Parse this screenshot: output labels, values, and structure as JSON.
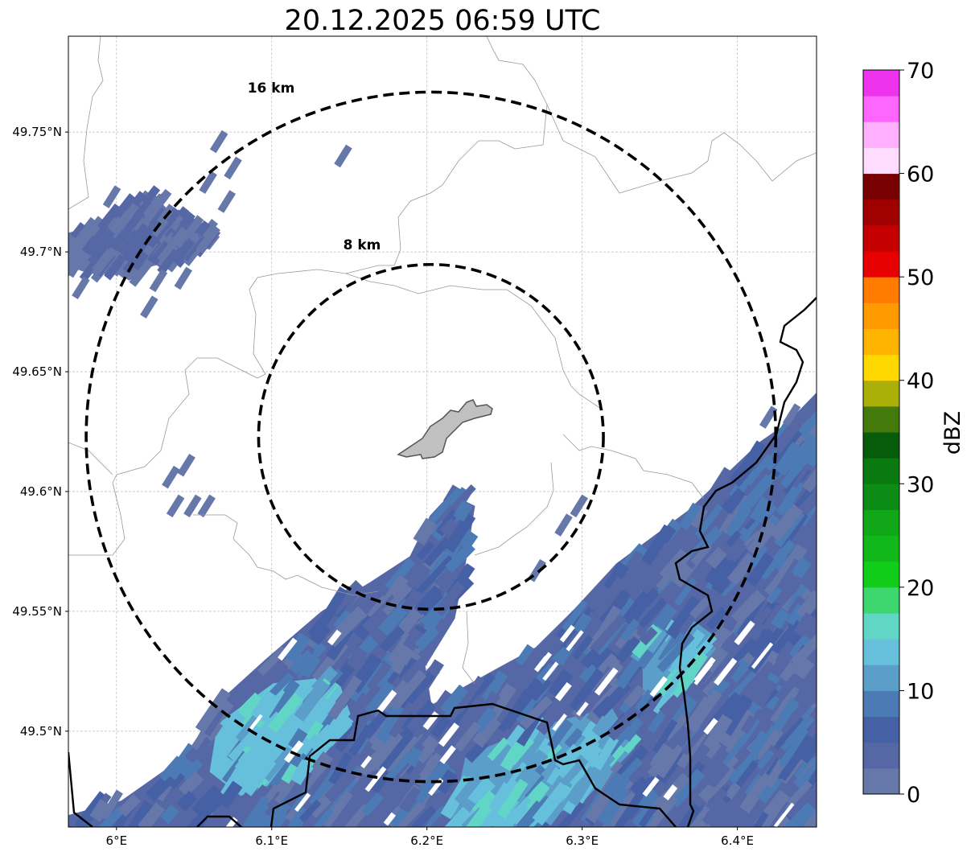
{
  "chart_data": {
    "type": "heatmap",
    "title": "20.12.2025 06:59 UTC",
    "projection": "PlateCarree",
    "extent": {
      "lon": [
        5.969,
        6.451
      ],
      "lat": [
        49.46,
        49.79
      ]
    },
    "xticks": [
      {
        "value": 6.0,
        "label": "6°E"
      },
      {
        "value": 6.1,
        "label": "6.1°E"
      },
      {
        "value": 6.2,
        "label": "6.2°E"
      },
      {
        "value": 6.3,
        "label": "6.3°E"
      },
      {
        "value": 6.4,
        "label": "6.4°E"
      }
    ],
    "yticks": [
      {
        "value": 49.75,
        "label": "49.75°N"
      },
      {
        "value": 49.7,
        "label": "49.7°N"
      },
      {
        "value": 49.65,
        "label": "49.65°N"
      },
      {
        "value": 49.6,
        "label": "49.6°N"
      },
      {
        "value": 49.55,
        "label": "49.55°N"
      },
      {
        "value": 49.5,
        "label": "49.5°N"
      }
    ],
    "grid": true,
    "range_rings": {
      "center": {
        "lon": 6.2026,
        "lat": 49.6228
      },
      "rings": [
        {
          "km": 8,
          "label": "8 km"
        },
        {
          "km": 16,
          "label": "16 km"
        }
      ]
    },
    "colorbar": {
      "label": "dBZ",
      "min": 0,
      "max": 70,
      "step": 2.5,
      "ticks": [
        0,
        10,
        20,
        30,
        40,
        50,
        60,
        70
      ],
      "tick_labels": [
        "0",
        "10",
        "20",
        "30",
        "40",
        "50",
        "60",
        "70"
      ],
      "colors": [
        "#6677aa",
        "#5567a4",
        "#4560a5",
        "#4b7ab4",
        "#5a9ec9",
        "#66c0dc",
        "#62d6c6",
        "#3ed66e",
        "#12cc1a",
        "#10b81a",
        "#10a818",
        "#0c8c14",
        "#0a7a10",
        "#075c0c",
        "#447a0c",
        "#aab008",
        "#ffd800",
        "#ffb400",
        "#ff9a00",
        "#ff7c00",
        "#e60000",
        "#c40000",
        "#a00000",
        "#780000",
        "#ffdcff",
        "#ffb0ff",
        "#ff66ff",
        "#ee33ee"
      ]
    },
    "echo_regions": [
      {
        "name": "main-band",
        "dbz": 2.5,
        "polygon": [
          [
            5.969,
            49.46
          ],
          [
            5.969,
            49.465
          ],
          [
            6.003,
            49.471
          ],
          [
            6.047,
            49.491
          ],
          [
            6.062,
            49.51
          ],
          [
            6.096,
            49.53
          ],
          [
            6.132,
            49.55
          ],
          [
            6.163,
            49.562
          ],
          [
            6.189,
            49.573
          ],
          [
            6.202,
            49.59
          ],
          [
            6.215,
            49.599
          ],
          [
            6.231,
            49.594
          ],
          [
            6.225,
            49.57
          ],
          [
            6.218,
            49.547
          ],
          [
            6.199,
            49.527
          ],
          [
            6.203,
            49.511
          ],
          [
            6.239,
            49.524
          ],
          [
            6.27,
            49.535
          ],
          [
            6.295,
            49.551
          ],
          [
            6.322,
            49.57
          ],
          [
            6.368,
            49.592
          ],
          [
            6.415,
            49.621
          ],
          [
            6.451,
            49.637
          ],
          [
            6.451,
            49.46
          ]
        ]
      },
      {
        "name": "northwest-cluster",
        "dbz": 0,
        "polygon": [
          [
            5.969,
            49.708
          ],
          [
            5.987,
            49.711
          ],
          [
            6.013,
            49.723
          ],
          [
            6.023,
            49.724
          ],
          [
            6.036,
            49.716
          ],
          [
            6.06,
            49.711
          ],
          [
            6.062,
            49.704
          ],
          [
            6.049,
            49.698
          ],
          [
            6.036,
            49.696
          ],
          [
            6.023,
            49.694
          ],
          [
            6.008,
            49.688
          ],
          [
            5.997,
            49.694
          ],
          [
            5.982,
            49.691
          ],
          [
            5.969,
            49.694
          ]
        ]
      },
      {
        "name": "core-west",
        "dbz": 12.5,
        "polygon": [
          [
            6.065,
            49.503
          ],
          [
            6.101,
            49.52
          ],
          [
            6.142,
            49.523
          ],
          [
            6.153,
            49.503
          ],
          [
            6.122,
            49.483
          ],
          [
            6.08,
            49.473
          ],
          [
            6.06,
            49.483
          ]
        ]
      },
      {
        "name": "core-south",
        "dbz": 10,
        "polygon": [
          [
            6.225,
            49.49
          ],
          [
            6.277,
            49.503
          ],
          [
            6.319,
            49.51
          ],
          [
            6.334,
            49.493
          ],
          [
            6.298,
            49.469
          ],
          [
            6.256,
            49.46
          ],
          [
            6.215,
            49.46
          ]
        ]
      },
      {
        "name": "core-east",
        "dbz": 10,
        "polygon": [
          [
            6.339,
            49.537
          ],
          [
            6.37,
            49.547
          ],
          [
            6.391,
            49.537
          ],
          [
            6.37,
            49.517
          ],
          [
            6.339,
            49.514
          ]
        ]
      }
    ],
    "echo_streaks": [
      {
        "lon": 6.066,
        "lat": 49.746,
        "dbz": 0
      },
      {
        "lon": 6.075,
        "lat": 49.735,
        "dbz": 0
      },
      {
        "lon": 6.059,
        "lat": 49.729,
        "dbz": 0
      },
      {
        "lon": 6.071,
        "lat": 49.721,
        "dbz": 0
      },
      {
        "lon": 5.997,
        "lat": 49.723,
        "dbz": 0
      },
      {
        "lon": 5.977,
        "lat": 49.685,
        "dbz": 0
      },
      {
        "lon": 6.021,
        "lat": 49.677,
        "dbz": 0
      },
      {
        "lon": 6.027,
        "lat": 49.688,
        "dbz": 0
      },
      {
        "lon": 6.043,
        "lat": 49.689,
        "dbz": 0
      },
      {
        "lon": 6.146,
        "lat": 49.74,
        "dbz": 0
      },
      {
        "lon": 6.035,
        "lat": 49.606,
        "dbz": 0
      },
      {
        "lon": 6.045,
        "lat": 49.611,
        "dbz": 0
      },
      {
        "lon": 6.038,
        "lat": 49.594,
        "dbz": 0
      },
      {
        "lon": 6.049,
        "lat": 49.594,
        "dbz": 0
      },
      {
        "lon": 6.058,
        "lat": 49.594,
        "dbz": 0
      },
      {
        "lon": 6.288,
        "lat": 49.586,
        "dbz": 0
      },
      {
        "lon": 6.298,
        "lat": 49.594,
        "dbz": 0
      },
      {
        "lon": 6.271,
        "lat": 49.567,
        "dbz": 0
      },
      {
        "lon": 6.42,
        "lat": 49.631,
        "dbz": 0
      },
      {
        "lon": 6.435,
        "lat": 49.632,
        "dbz": 0
      },
      {
        "lon": 5.974,
        "lat": 49.694,
        "dbz": 0
      }
    ]
  }
}
